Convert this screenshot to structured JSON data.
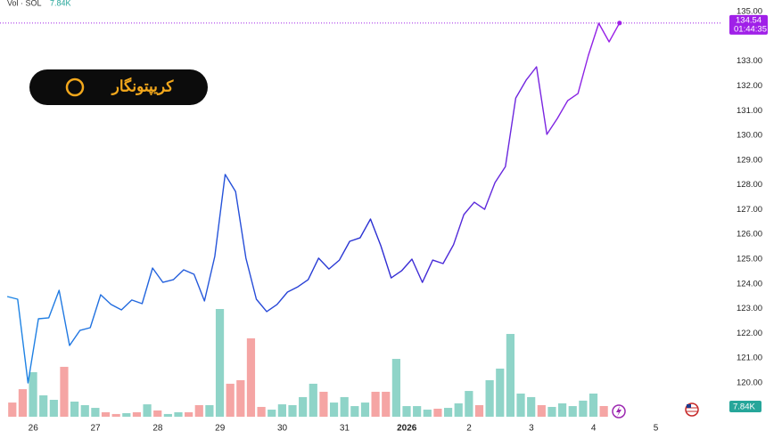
{
  "chart_data": {
    "type": "line",
    "logo": "کریپتونگار",
    "countdown": "01:44:35",
    "colors": [
      "#1e88e5",
      "#2b2fd2",
      "#a020e8"
    ],
    "x": [
      0,
      1,
      2,
      3,
      4,
      5,
      6,
      7,
      8,
      9,
      10,
      11,
      12,
      13,
      14,
      15,
      16,
      17,
      18,
      19,
      20,
      21,
      22,
      23,
      24,
      25,
      26,
      27,
      28,
      29,
      30,
      31,
      32,
      33,
      34,
      35,
      36,
      37,
      38,
      39,
      40,
      41,
      42,
      43,
      44,
      45,
      46,
      47,
      48,
      49,
      50,
      51,
      52,
      53,
      54,
      55,
      56,
      57,
      58,
      59
    ],
    "values": [
      123.49,
      123.38,
      120.0,
      122.59,
      122.63,
      123.74,
      121.51,
      122.12,
      122.23,
      123.56,
      123.17,
      122.95,
      123.35,
      123.2,
      124.64,
      124.06,
      124.17,
      124.57,
      124.39,
      123.31,
      125.11,
      128.42,
      127.73,
      125.04,
      123.38,
      122.88,
      123.17,
      123.67,
      123.88,
      124.17,
      125.04,
      124.6,
      124.96,
      125.72,
      125.86,
      126.62,
      125.54,
      124.24,
      124.53,
      125.0,
      124.06,
      124.96,
      124.82,
      125.58,
      126.8,
      127.3,
      127.01,
      128.09,
      128.74,
      131.51,
      132.23,
      132.77,
      130.04,
      130.68,
      131.4,
      131.69,
      133.24,
      134.53,
      133.78,
      134.54
    ],
    "volume": {
      "name": "Vol · SOL",
      "values": [
        null,
        10.4,
        20.2,
        32.7,
        15.7,
        12.4,
        36.6,
        11.1,
        8.5,
        6.5,
        3.3,
        2.0,
        2.6,
        3.3,
        9.1,
        4.6,
        2.0,
        3.3,
        3.3,
        8.5,
        8.5,
        79.0,
        24.2,
        26.8,
        57.5,
        7.2,
        5.2,
        9.1,
        8.5,
        14.4,
        24.2,
        18.3,
        10.4,
        14.4,
        7.8,
        10.4,
        18.3,
        18.3,
        42.4,
        7.8,
        7.8,
        5.2,
        5.9,
        6.5,
        9.8,
        18.9,
        8.5,
        26.8,
        35.3,
        60.7,
        17.0,
        14.4,
        8.5,
        7.2,
        9.8,
        7.8,
        11.8,
        17.0,
        7.84,
        null
      ],
      "value_labels": [
        null,
        null,
        null,
        null,
        null,
        null,
        null,
        null,
        null,
        null,
        null,
        null,
        null,
        null,
        null,
        null,
        null,
        null,
        null,
        null,
        null,
        null,
        null,
        null,
        null,
        null,
        null,
        null,
        null,
        null,
        null,
        null,
        null,
        null,
        null,
        null,
        null,
        null,
        null,
        null,
        null,
        null,
        null,
        null,
        null,
        null,
        null,
        null,
        null,
        null,
        null,
        null,
        null,
        null,
        null,
        null,
        null,
        null,
        "7.84K",
        null
      ],
      "colors": [
        null,
        "#f5a5a4",
        "#f5a5a4",
        "#8fd4c8",
        "#8fd4c8",
        "#8fd4c8",
        "#f5a5a4",
        "#8fd4c8",
        "#8fd4c8",
        "#8fd4c8",
        "#f5a5a4",
        "#f5a5a4",
        "#8fd4c8",
        "#f5a5a4",
        "#8fd4c8",
        "#f5a5a4",
        "#8fd4c8",
        "#8fd4c8",
        "#f5a5a4",
        "#f5a5a4",
        "#8fd4c8",
        "#8fd4c8",
        "#f5a5a4",
        "#f5a5a4",
        "#f5a5a4",
        "#f5a5a4",
        "#8fd4c8",
        "#8fd4c8",
        "#8fd4c8",
        "#8fd4c8",
        "#8fd4c8",
        "#f5a5a4",
        "#8fd4c8",
        "#8fd4c8",
        "#8fd4c8",
        "#8fd4c8",
        "#f5a5a4",
        "#f5a5a4",
        "#8fd4c8",
        "#8fd4c8",
        "#8fd4c8",
        "#8fd4c8",
        "#f5a5a4",
        "#8fd4c8",
        "#8fd4c8",
        "#8fd4c8",
        "#f5a5a4",
        "#8fd4c8",
        "#8fd4c8",
        "#8fd4c8",
        "#8fd4c8",
        "#8fd4c8",
        "#f5a5a4",
        "#8fd4c8",
        "#8fd4c8",
        "#8fd4c8",
        "#8fd4c8",
        "#8fd4c8",
        "#f5a5a4",
        null
      ]
    },
    "xlim": [
      -0.7,
      68.9
    ],
    "xticks": [
      {
        "value": 2.5,
        "label": "26"
      },
      {
        "value": 8.5,
        "label": "27"
      },
      {
        "value": 14.5,
        "label": "28"
      },
      {
        "value": 20.5,
        "label": "29"
      },
      {
        "value": 26.5,
        "label": "30"
      },
      {
        "value": 32.5,
        "label": "31"
      },
      {
        "value": 38.5,
        "label": "2026"
      },
      {
        "value": 44.5,
        "label": "2"
      },
      {
        "value": 50.5,
        "label": "3"
      },
      {
        "value": 56.5,
        "label": "4"
      },
      {
        "value": 62.5,
        "label": "5"
      }
    ],
    "ylim": [
      118.56,
      135.47
    ],
    "yticks": [
      {
        "value": 135,
        "label": "135.00"
      },
      {
        "value": 133,
        "label": "133.00"
      },
      {
        "value": 132,
        "label": "132.00"
      },
      {
        "value": 131,
        "label": "131.00"
      },
      {
        "value": 130,
        "label": "130.00"
      },
      {
        "value": 129,
        "label": "129.00"
      },
      {
        "value": 128,
        "label": "128.00"
      },
      {
        "value": 127,
        "label": "127.00"
      },
      {
        "value": 126,
        "label": "126.00"
      },
      {
        "value": 125,
        "label": "125.00"
      },
      {
        "value": 124,
        "label": "124.00"
      },
      {
        "value": 123,
        "label": "123.00"
      },
      {
        "value": 122,
        "label": "122.00"
      },
      {
        "value": 121,
        "label": "121.00"
      },
      {
        "value": 120,
        "label": "120.00"
      }
    ],
    "grid": false
  }
}
